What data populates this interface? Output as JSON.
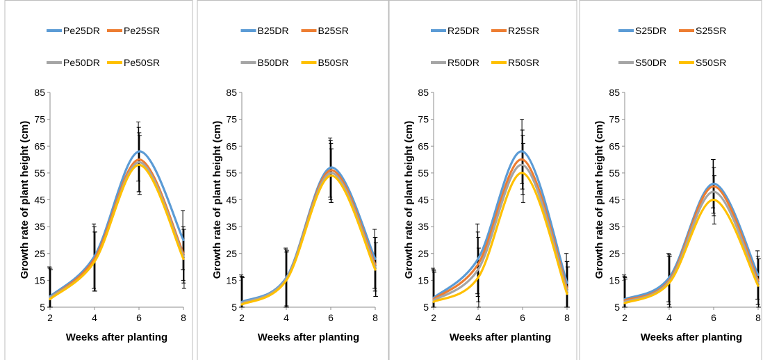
{
  "chart_data": [
    {
      "type": "line",
      "x": [
        2,
        4,
        6,
        8
      ],
      "xlabel": "Weeks after planting",
      "ylabel": "Growth rate of plant height (cm)",
      "ylim": [
        5,
        85
      ],
      "yticks": [
        5,
        15,
        25,
        35,
        45,
        55,
        65,
        75,
        85
      ],
      "legend": "top",
      "grid": false,
      "series": [
        {
          "name": "Pe25DR",
          "color": "#5B9BD5",
          "values": [
            9,
            24,
            63,
            30
          ],
          "err": [
            11,
            12,
            11,
            11
          ]
        },
        {
          "name": "Pe25SR",
          "color": "#ED7D31",
          "values": [
            8.5,
            23,
            60,
            25
          ],
          "err": [
            11,
            12,
            12,
            10
          ]
        },
        {
          "name": "Pe50DR",
          "color": "#A5A5A5",
          "values": [
            8.5,
            22,
            59,
            24
          ],
          "err": [
            11,
            11,
            11,
            10
          ]
        },
        {
          "name": "Pe50SR",
          "color": "#FFC000",
          "values": [
            8,
            22,
            58,
            23
          ],
          "err": [
            11,
            11,
            11,
            11
          ]
        }
      ]
    },
    {
      "type": "line",
      "x": [
        2,
        4,
        6,
        8
      ],
      "xlabel": "Weeks after planting",
      "ylabel": "Growth rate of plant height (cm)",
      "ylim": [
        5,
        85
      ],
      "yticks": [
        5,
        15,
        25,
        35,
        45,
        55,
        65,
        75,
        85
      ],
      "legend": "top",
      "grid": false,
      "series": [
        {
          "name": "B25DR",
          "color": "#5B9BD5",
          "values": [
            7,
            16,
            57,
            23
          ],
          "err": [
            10,
            11,
            11,
            11
          ]
        },
        {
          "name": "B25SR",
          "color": "#ED7D31",
          "values": [
            6.5,
            15.5,
            56,
            21
          ],
          "err": [
            10,
            11,
            11,
            10
          ]
        },
        {
          "name": "B50DR",
          "color": "#A5A5A5",
          "values": [
            6.5,
            15.5,
            55,
            20
          ],
          "err": [
            10,
            10,
            11,
            11
          ]
        },
        {
          "name": "B50SR",
          "color": "#FFC000",
          "values": [
            6,
            15,
            54,
            19
          ],
          "err": [
            10,
            11,
            10,
            10
          ]
        }
      ]
    },
    {
      "type": "line",
      "x": [
        2,
        4,
        6,
        8
      ],
      "xlabel": "Weeks after planting",
      "ylabel": "Growth rate of plant height (cm)",
      "ylim": [
        5,
        85
      ],
      "yticks": [
        5,
        15,
        25,
        35,
        45,
        55,
        65,
        75,
        85
      ],
      "legend": "top",
      "grid": false,
      "series": [
        {
          "name": "R25DR",
          "color": "#5B9BD5",
          "values": [
            8.5,
            23,
            63,
            14
          ],
          "err": [
            11,
            13,
            12,
            11
          ]
        },
        {
          "name": "R25SR",
          "color": "#ED7D31",
          "values": [
            8,
            21,
            60,
            12
          ],
          "err": [
            11,
            12,
            11,
            10
          ]
        },
        {
          "name": "R50DR",
          "color": "#A5A5A5",
          "values": [
            7.5,
            19,
            58,
            11
          ],
          "err": [
            11,
            12,
            11,
            11
          ]
        },
        {
          "name": "R50SR",
          "color": "#FFC000",
          "values": [
            7,
            16,
            55,
            10
          ],
          "err": [
            11,
            11,
            11,
            10
          ]
        }
      ]
    },
    {
      "type": "line",
      "x": [
        2,
        4,
        6,
        8
      ],
      "xlabel": "Weeks after planting",
      "ylabel": "Growth rate of plant height (cm)",
      "ylim": [
        5,
        85
      ],
      "yticks": [
        5,
        15,
        25,
        35,
        45,
        55,
        65,
        75,
        85
      ],
      "legend": "top",
      "grid": false,
      "series": [
        {
          "name": "S25DR",
          "color": "#5B9BD5",
          "values": [
            8,
            16,
            51,
            17
          ],
          "err": [
            9,
            9,
            9,
            9
          ]
        },
        {
          "name": "S25SR",
          "color": "#ED7D31",
          "values": [
            7.5,
            15,
            50,
            15
          ],
          "err": [
            9,
            9,
            10,
            9
          ]
        },
        {
          "name": "S50DR",
          "color": "#A5A5A5",
          "values": [
            7,
            14.5,
            48,
            14
          ],
          "err": [
            9,
            10,
            9,
            9
          ]
        },
        {
          "name": "S50SR",
          "color": "#FFC000",
          "values": [
            6.5,
            14,
            45,
            13
          ],
          "err": [
            9,
            10,
            9,
            10
          ]
        }
      ]
    }
  ]
}
